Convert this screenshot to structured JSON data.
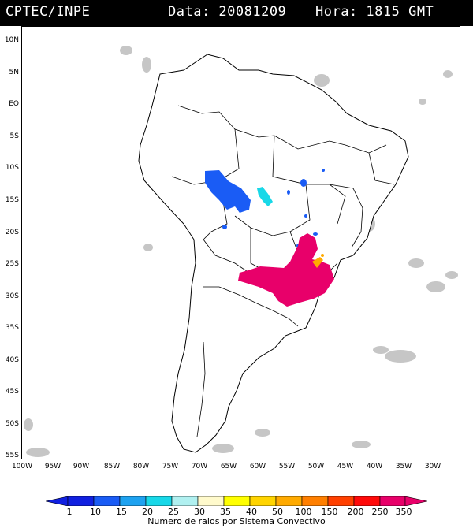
{
  "header": {
    "source": "CPTEC/INPE",
    "date_text": "Data: 20081209",
    "time_text": "Hora: 1815 GMT"
  },
  "lat_labels": [
    "10N",
    "5N",
    "EQ",
    "5S",
    "10S",
    "15S",
    "20S",
    "25S",
    "30S",
    "35S",
    "40S",
    "45S",
    "50S",
    "55S"
  ],
  "lon_labels": [
    "100W",
    "95W",
    "90W",
    "85W",
    "80W",
    "75W",
    "70W",
    "65W",
    "60W",
    "55W",
    "50W",
    "45W",
    "40W",
    "35W",
    "30W"
  ],
  "colorbar": {
    "labels": [
      "1",
      "10",
      "15",
      "20",
      "25",
      "30",
      "35",
      "40",
      "50",
      "100",
      "150",
      "200",
      "250",
      "350"
    ],
    "colors": [
      "#1020e0",
      "#1a5cf5",
      "#1ea2f0",
      "#18d8e8",
      "#b0f0f0",
      "#fffacc",
      "#ffff00",
      "#ffd400",
      "#ffaa00",
      "#ff7f00",
      "#ff4000",
      "#ff0a0a",
      "#e8006a"
    ],
    "caption": "Numero de raios por Sistema Convectivo"
  },
  "map": {
    "lat_range": [
      10,
      -55
    ],
    "lon_range": [
      -100,
      -30
    ],
    "cloud_color": "#c6c6c6",
    "coast_color": "#000000"
  }
}
